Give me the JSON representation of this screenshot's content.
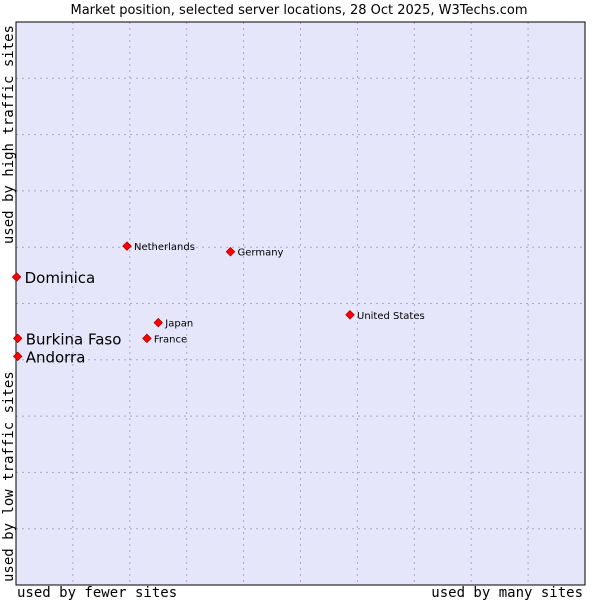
{
  "chart_data": {
    "type": "scatter",
    "title": "Market position, selected server locations, 28 Oct 2025, W3Techs.com",
    "xlabel_left": "used by fewer sites",
    "xlabel_right": "used by many sites",
    "ylabel_bottom": "used by low traffic sites",
    "ylabel_top": "used by high traffic sites",
    "xlim": [
      0,
      100
    ],
    "ylim": [
      0,
      100
    ],
    "grid": true,
    "colors": {
      "plot_bg": "#e6e6fa",
      "grid": "#a8a8c8",
      "frame": "#000000",
      "marker": "#ff0000",
      "marker_edge": "#aa0000"
    },
    "points": [
      {
        "name": "Netherlands",
        "x": 19.5,
        "y": 60.2,
        "size": "small"
      },
      {
        "name": "Germany",
        "x": 37.7,
        "y": 59.2,
        "size": "small"
      },
      {
        "name": "Dominica",
        "x": 0.1,
        "y": 54.7,
        "size": "large"
      },
      {
        "name": "United States",
        "x": 58.7,
        "y": 48.0,
        "size": "small"
      },
      {
        "name": "Japan",
        "x": 25.0,
        "y": 46.6,
        "size": "small"
      },
      {
        "name": "France",
        "x": 23.0,
        "y": 43.8,
        "size": "small"
      },
      {
        "name": "Burkina Faso",
        "x": 0.3,
        "y": 43.8,
        "size": "large"
      },
      {
        "name": "Andorra",
        "x": 0.3,
        "y": 40.6,
        "size": "large"
      }
    ]
  }
}
